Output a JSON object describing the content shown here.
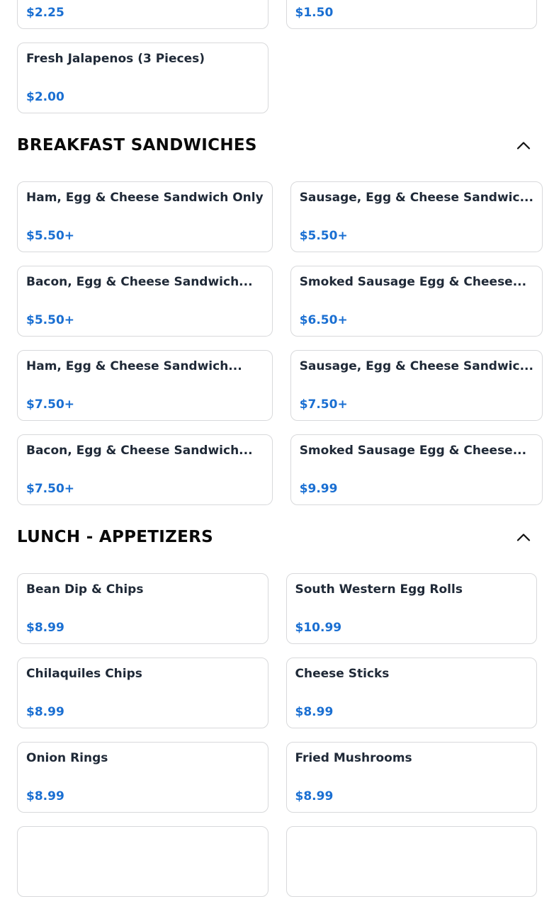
{
  "page": {
    "background": "#ffffff"
  },
  "colors": {
    "price_text": "#1a6fd2",
    "item_title_text": "#1f2937",
    "section_header_text": "#0a0a0a",
    "card_border": "#d8d9db",
    "chevron": "#111111"
  },
  "icons": {
    "section_toggle": "chevron-up-icon"
  },
  "sections": [
    {
      "header": null,
      "items": [
        {
          "title": "",
          "price": "$2.25"
        },
        {
          "title": "",
          "price": "$1.50"
        },
        {
          "title": "Fresh Jalapenos (3 Pieces)",
          "price": "$2.00"
        }
      ]
    },
    {
      "header": "BREAKFAST SANDWICHES",
      "items": [
        {
          "title": "Ham, Egg & Cheese Sandwich Only",
          "price": "$5.50+"
        },
        {
          "title": "Sausage, Egg & Cheese Sandwic...",
          "price": "$5.50+"
        },
        {
          "title": "Bacon, Egg & Cheese Sandwich...",
          "price": "$5.50+"
        },
        {
          "title": "Smoked Sausage Egg & Cheese...",
          "price": "$6.50+"
        },
        {
          "title": "Ham, Egg & Cheese Sandwich...",
          "price": "$7.50+"
        },
        {
          "title": "Sausage, Egg & Cheese Sandwic...",
          "price": "$7.50+"
        },
        {
          "title": "Bacon, Egg & Cheese Sandwich...",
          "price": "$7.50+"
        },
        {
          "title": "Smoked Sausage Egg & Cheese...",
          "price": "$9.99"
        }
      ]
    },
    {
      "header": "LUNCH - APPETIZERS",
      "items": [
        {
          "title": "Bean Dip & Chips",
          "price": "$8.99"
        },
        {
          "title": "South Western Egg Rolls",
          "price": "$10.99"
        },
        {
          "title": "Chilaquiles Chips",
          "price": "$8.99"
        },
        {
          "title": "Cheese Sticks",
          "price": "$8.99"
        },
        {
          "title": "Onion Rings",
          "price": "$8.99"
        },
        {
          "title": "Fried Mushrooms",
          "price": "$8.99"
        },
        {
          "title": "",
          "price": ""
        },
        {
          "title": "",
          "price": ""
        }
      ]
    }
  ]
}
